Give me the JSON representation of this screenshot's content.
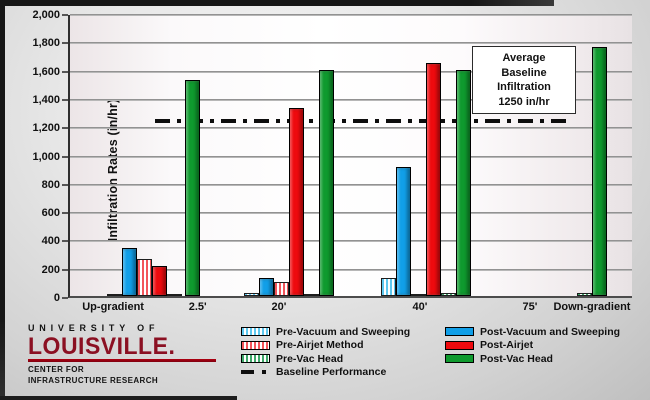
{
  "chart_data": {
    "type": "bar",
    "title": "",
    "xlabel": "",
    "ylabel": "Infiltration Rates (in/hr)",
    "ylim": [
      0,
      2000
    ],
    "ytick_interval": 200,
    "ytick_labels": [
      "0",
      "200",
      "400",
      "600",
      "800",
      "1,000",
      "1,200",
      "1,400",
      "1,600",
      "1,800",
      "2,000"
    ],
    "grid": true,
    "legend_position": "bottom",
    "series": [
      {
        "name": "Pre-Vacuum and Sweeping",
        "pattern": "hatched",
        "color": "#5ec8ef"
      },
      {
        "name": "Post-Vacuum and Sweeping",
        "pattern": "solid",
        "color": "#119fe8"
      },
      {
        "name": "Pre-Airjet Method",
        "pattern": "hatched",
        "color": "#f2555b"
      },
      {
        "name": "Post-Airjet",
        "pattern": "solid",
        "color": "#ee0a0e"
      },
      {
        "name": "Pre-Vac Head",
        "pattern": "hatched",
        "color": "#3fa86a"
      },
      {
        "name": "Post-Vac Head",
        "pattern": "solid",
        "color": "#0f9a2e"
      }
    ],
    "categories": [
      "Up-gradient",
      "2.5'",
      "20'",
      "40'",
      "75'",
      "Down-gradient"
    ],
    "category_label_pos_pct": [
      8.0,
      23.0,
      37.4,
      62.4,
      81.9,
      92.9
    ],
    "group_center_pct": [
      13.2,
      21.7,
      38.8,
      63.1,
      null,
      92.6
    ],
    "values": [
      [
        10,
        340,
        265,
        210,
        10,
        null
      ],
      [
        null,
        null,
        null,
        null,
        null,
        1530
      ],
      [
        20,
        130,
        100,
        1330,
        15,
        1600
      ],
      [
        130,
        910,
        10,
        1650,
        20,
        1600
      ],
      [
        null,
        null,
        null,
        null,
        null,
        null
      ],
      [
        null,
        null,
        null,
        null,
        20,
        1760
      ]
    ],
    "baseline": {
      "value": 1250,
      "legend_label": "Baseline Performance",
      "style": "dash-dot",
      "color": "#111111",
      "span_pct": [
        15,
        88
      ]
    },
    "annotation": {
      "lines": [
        "Average",
        "Baseline",
        "Infiltration",
        "1250 in/hr"
      ]
    }
  },
  "logo": {
    "line1": "UNIVERSITY OF",
    "line2": "LOUISVILLE",
    "line2_suffix": ".",
    "line3": "CENTER FOR",
    "line4": "INFRASTRUCTURE RESEARCH",
    "brand_color": "#8b1022",
    "rule_color": "#b00010"
  }
}
